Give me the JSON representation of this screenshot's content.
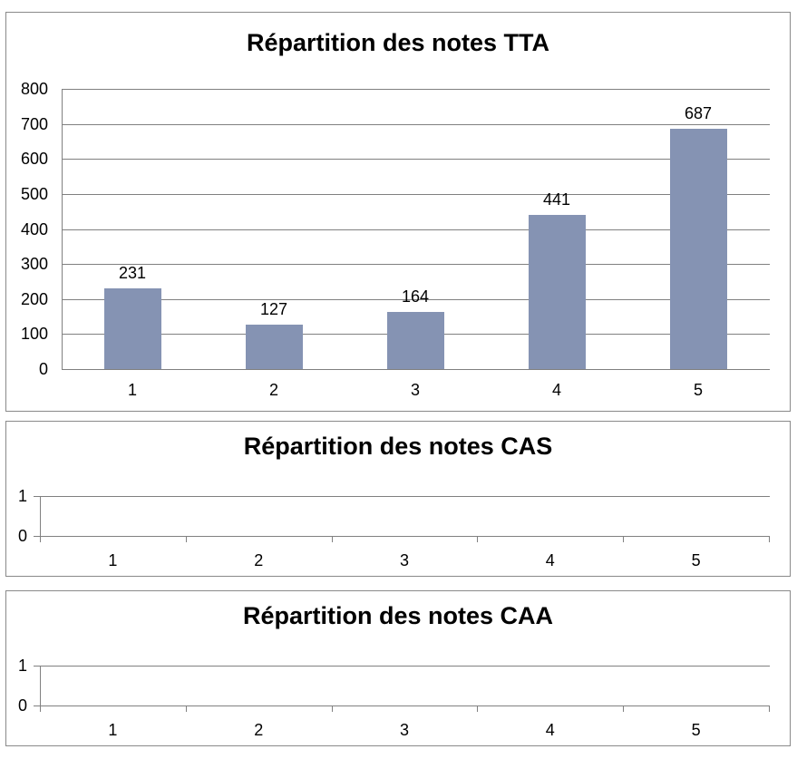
{
  "style": {
    "background": "#FFFFFF",
    "bar_color": "#8593B3",
    "grid_color": "#808080",
    "axis_color": "#808080",
    "panel_border_color": "#8A8A8A",
    "text_color": "#000000"
  },
  "chart_data": [
    {
      "type": "bar",
      "title": "Répartition des notes TTA",
      "categories": [
        "1",
        "2",
        "3",
        "4",
        "5"
      ],
      "values": [
        231,
        127,
        164,
        441,
        687
      ],
      "data_labels": [
        "231",
        "127",
        "164",
        "441",
        "687"
      ],
      "ylim": [
        0,
        800
      ],
      "yticks": [
        0,
        100,
        200,
        300,
        400,
        500,
        600,
        700,
        800
      ],
      "grid": true,
      "legend": "none",
      "xlabel": "",
      "ylabel": ""
    },
    {
      "type": "bar",
      "title": "Répartition des notes CAS",
      "categories": [
        "1",
        "2",
        "3",
        "4",
        "5"
      ],
      "values": [],
      "data_labels": [],
      "ylim": [
        0,
        1
      ],
      "yticks": [
        0,
        1
      ],
      "grid": true,
      "legend": "none",
      "xlabel": "",
      "ylabel": ""
    },
    {
      "type": "bar",
      "title": "Répartition des notes CAA",
      "categories": [
        "1",
        "2",
        "3",
        "4",
        "5"
      ],
      "values": [],
      "data_labels": [],
      "ylim": [
        0,
        1
      ],
      "yticks": [
        0,
        1
      ],
      "grid": true,
      "legend": "none",
      "xlabel": "",
      "ylabel": ""
    }
  ]
}
